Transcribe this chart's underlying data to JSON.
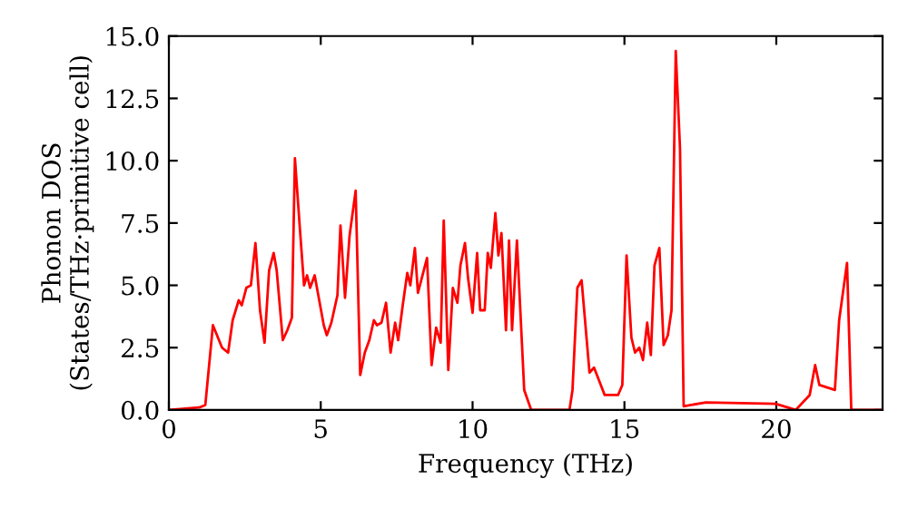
{
  "chart_data": {
    "type": "line",
    "xlabel": "Frequency (THz)",
    "ylabel": "Phonon DOS\n(States/THz·primitive cell)",
    "xlim": [
      0,
      23.5
    ],
    "xticks": [
      0,
      5,
      10,
      15,
      20
    ],
    "ylim": [
      0,
      15
    ],
    "yticks": [
      {
        "value": 0,
        "label": "0.0"
      },
      {
        "value": 2.5,
        "label": "2.5"
      },
      {
        "value": 5,
        "label": "5.0"
      },
      {
        "value": 7.5,
        "label": "7.5"
      },
      {
        "value": 10,
        "label": "10.0"
      },
      {
        "value": 12.5,
        "label": "12.5"
      },
      {
        "value": 15,
        "label": "15.0"
      }
    ],
    "grid": false,
    "legend": false,
    "marker": "none",
    "line_style": "solid",
    "series": [
      {
        "color": "#ff0000",
        "x": [
          0,
          1.0,
          1.2,
          1.45,
          1.75,
          1.95,
          2.1,
          2.3,
          2.4,
          2.55,
          2.7,
          2.85,
          3.0,
          3.15,
          3.3,
          3.45,
          3.55,
          3.75,
          3.9,
          4.05,
          4.15,
          4.3,
          4.45,
          4.55,
          4.65,
          4.8,
          4.95,
          5.1,
          5.2,
          5.35,
          5.55,
          5.65,
          5.8,
          5.95,
          6.15,
          6.3,
          6.45,
          6.6,
          6.75,
          6.85,
          7.0,
          7.15,
          7.3,
          7.45,
          7.55,
          7.7,
          7.85,
          7.95,
          8.1,
          8.2,
          8.35,
          8.5,
          8.65,
          8.8,
          8.95,
          9.05,
          9.2,
          9.35,
          9.5,
          9.6,
          9.75,
          9.85,
          10.0,
          10.15,
          10.25,
          10.4,
          10.5,
          10.6,
          10.75,
          10.85,
          10.95,
          11.1,
          11.2,
          11.3,
          11.46,
          11.7,
          11.93,
          13.19,
          13.29,
          13.45,
          13.59,
          13.85,
          14.0,
          14.35,
          14.79,
          14.93,
          15.07,
          15.23,
          15.35,
          15.49,
          15.61,
          15.75,
          15.87,
          15.99,
          16.15,
          16.29,
          16.43,
          16.55,
          16.69,
          16.83,
          16.95,
          17.68,
          19.98,
          20.64,
          21.1,
          21.28,
          21.42,
          21.93,
          22.07,
          22.33,
          22.47,
          23.5
        ],
        "values": [
          0,
          0.1,
          0.2,
          3.4,
          2.5,
          2.3,
          3.6,
          4.4,
          4.2,
          4.9,
          5.0,
          6.7,
          4.0,
          2.7,
          5.6,
          6.3,
          5.6,
          2.8,
          3.2,
          3.7,
          10.1,
          7.5,
          5.0,
          5.4,
          4.9,
          5.4,
          4.4,
          3.4,
          3.0,
          3.5,
          4.6,
          7.4,
          4.5,
          7.0,
          8.8,
          1.4,
          2.3,
          2.8,
          3.6,
          3.4,
          3.5,
          4.3,
          2.3,
          3.5,
          2.8,
          4.2,
          5.5,
          5.0,
          6.5,
          4.7,
          5.4,
          6.1,
          1.8,
          3.3,
          2.7,
          7.6,
          1.6,
          4.9,
          4.3,
          5.8,
          6.7,
          5.3,
          3.9,
          6.3,
          4.0,
          4.0,
          6.3,
          5.7,
          7.9,
          6.2,
          7.1,
          3.2,
          6.8,
          3.2,
          6.8,
          0.8,
          0,
          0,
          0.8,
          4.9,
          5.2,
          1.5,
          1.7,
          0.6,
          0.6,
          1.0,
          6.2,
          2.9,
          2.3,
          2.5,
          2.0,
          3.5,
          2.2,
          5.8,
          6.5,
          2.6,
          3.0,
          4.0,
          14.4,
          10.5,
          0.15,
          0.3,
          0.25,
          0,
          0.6,
          1.8,
          1.0,
          0.8,
          3.6,
          5.9,
          0,
          0
        ]
      }
    ]
  }
}
